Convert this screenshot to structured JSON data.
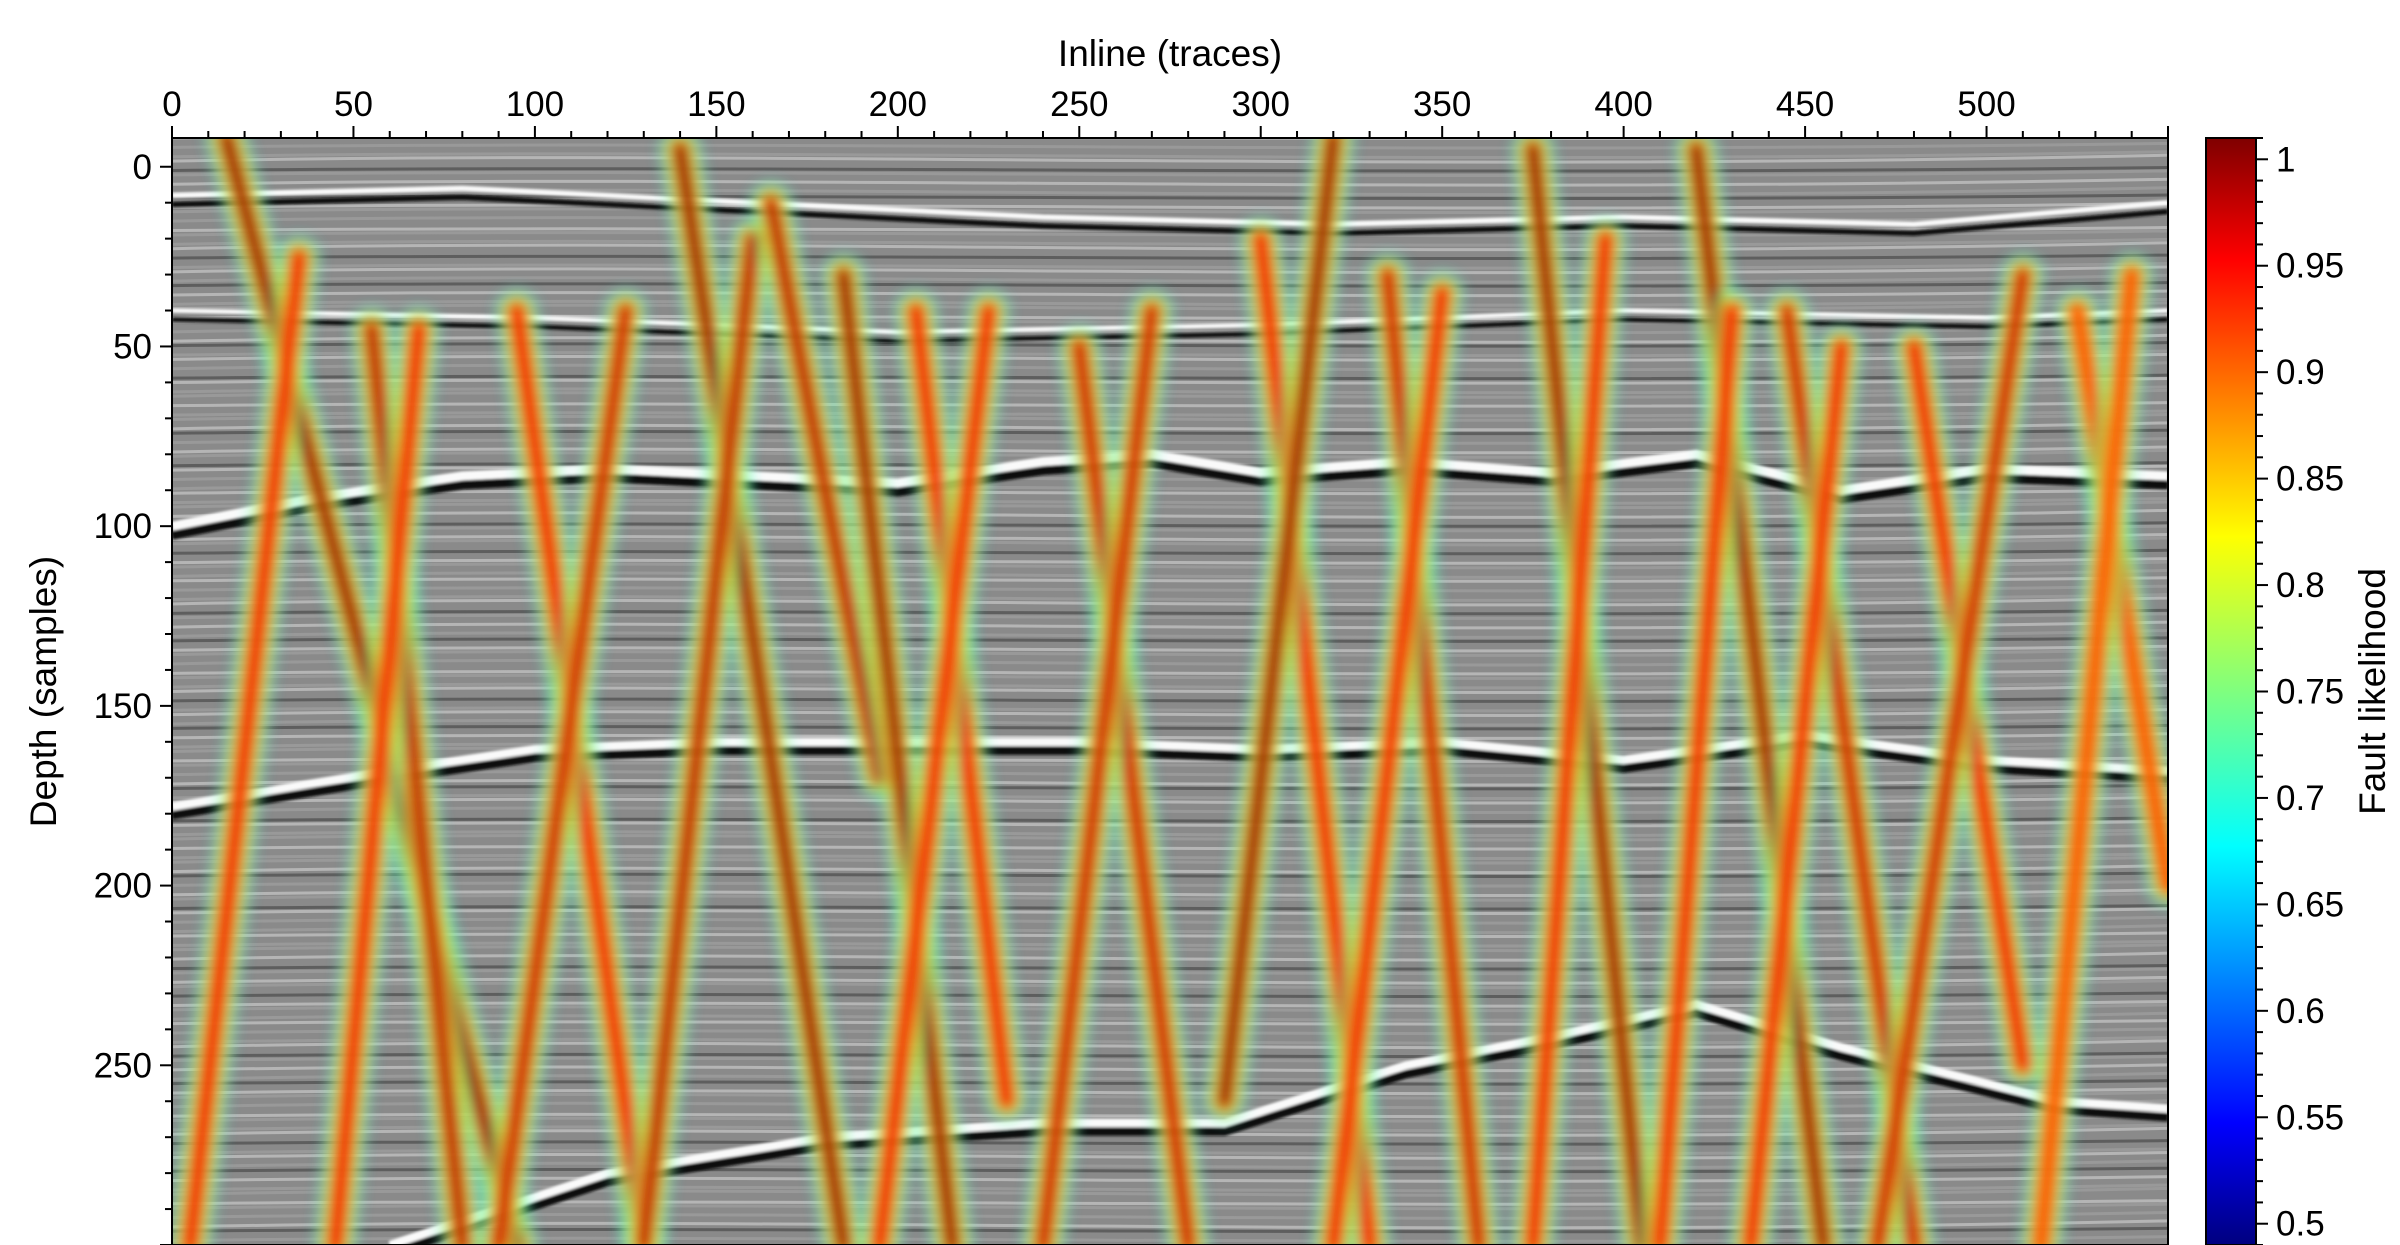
{
  "chart_data": {
    "type": "heatmap",
    "title": "",
    "xlabel": "Inline (traces)",
    "ylabel": "Depth (samples)",
    "colorbar_label": "Fault likelihood",
    "x_axis_position": "top",
    "xlim": [
      0,
      550
    ],
    "ylim": [
      300,
      -8
    ],
    "y_inverted": true,
    "x_ticks": [
      0,
      50,
      100,
      150,
      200,
      250,
      300,
      350,
      400,
      450,
      500
    ],
    "x_tick_labels": [
      "0",
      "50",
      "100",
      "150",
      "200",
      "250",
      "300",
      "350",
      "400",
      "450",
      "500"
    ],
    "y_ticks": [
      0,
      50,
      100,
      150,
      200,
      250
    ],
    "y_tick_labels": [
      "0",
      "50",
      "100",
      "150",
      "200",
      "250"
    ],
    "colorbar": {
      "range": [
        0.5,
        1.0
      ],
      "ticks": [
        0.5,
        0.55,
        0.6,
        0.65,
        0.7,
        0.75,
        0.8,
        0.85,
        0.9,
        0.95,
        1
      ],
      "tick_labels": [
        "0.5",
        "0.55",
        "0.6",
        "0.65",
        "0.7",
        "0.75",
        "0.8",
        "0.85",
        "0.9",
        "0.95",
        "1"
      ],
      "colormap": "jet"
    },
    "background": "grayscale seismic amplitude section",
    "horizons": [
      {
        "strength": 1.0,
        "points": [
          [
            0,
            100
          ],
          [
            40,
            92
          ],
          [
            80,
            86
          ],
          [
            120,
            84
          ],
          [
            160,
            86
          ],
          [
            200,
            88
          ],
          [
            240,
            82
          ],
          [
            270,
            80
          ],
          [
            300,
            85
          ],
          [
            340,
            82
          ],
          [
            380,
            85
          ],
          [
            420,
            80
          ],
          [
            460,
            90
          ],
          [
            500,
            84
          ],
          [
            550,
            86
          ]
        ]
      },
      {
        "strength": 0.9,
        "points": [
          [
            0,
            178
          ],
          [
            60,
            168
          ],
          [
            100,
            162
          ],
          [
            150,
            160
          ],
          [
            200,
            160
          ],
          [
            250,
            160
          ],
          [
            300,
            162
          ],
          [
            350,
            160
          ],
          [
            400,
            165
          ],
          [
            450,
            158
          ],
          [
            500,
            165
          ],
          [
            550,
            168
          ]
        ]
      },
      {
        "strength": 0.9,
        "points": [
          [
            60,
            300
          ],
          [
            120,
            280
          ],
          [
            180,
            270
          ],
          [
            240,
            266
          ],
          [
            290,
            266
          ],
          [
            340,
            250
          ],
          [
            380,
            242
          ],
          [
            420,
            233
          ],
          [
            460,
            245
          ],
          [
            520,
            260
          ],
          [
            550,
            262
          ]
        ]
      },
      {
        "strength": 0.6,
        "points": [
          [
            0,
            8
          ],
          [
            80,
            6
          ],
          [
            160,
            10
          ],
          [
            240,
            14
          ],
          [
            320,
            16
          ],
          [
            400,
            14
          ],
          [
            480,
            16
          ],
          [
            550,
            10
          ]
        ]
      },
      {
        "strength": 0.5,
        "points": [
          [
            0,
            40
          ],
          [
            100,
            42
          ],
          [
            200,
            46
          ],
          [
            300,
            44
          ],
          [
            400,
            40
          ],
          [
            500,
            42
          ],
          [
            550,
            40
          ]
        ]
      }
    ],
    "faults": [
      {
        "x_top": 15,
        "y_top": -8,
        "x_bottom": 95,
        "y_bottom": 300,
        "value": 1.0
      },
      {
        "x_top": 35,
        "y_top": 25,
        "x_bottom": 5,
        "y_bottom": 300,
        "value": 0.95
      },
      {
        "x_top": 55,
        "y_top": 45,
        "x_bottom": 80,
        "y_bottom": 300,
        "value": 0.98
      },
      {
        "x_top": 68,
        "y_top": 45,
        "x_bottom": 45,
        "y_bottom": 300,
        "value": 0.95
      },
      {
        "x_top": 95,
        "y_top": 40,
        "x_bottom": 130,
        "y_bottom": 300,
        "value": 0.95
      },
      {
        "x_top": 125,
        "y_top": 40,
        "x_bottom": 90,
        "y_bottom": 300,
        "value": 0.97
      },
      {
        "x_top": 140,
        "y_top": -5,
        "x_bottom": 185,
        "y_bottom": 300,
        "value": 1.0
      },
      {
        "x_top": 160,
        "y_top": 20,
        "x_bottom": 130,
        "y_bottom": 300,
        "value": 0.98
      },
      {
        "x_top": 165,
        "y_top": 10,
        "x_bottom": 195,
        "y_bottom": 170,
        "value": 0.98
      },
      {
        "x_top": 185,
        "y_top": 30,
        "x_bottom": 215,
        "y_bottom": 300,
        "value": 1.0
      },
      {
        "x_top": 205,
        "y_top": 40,
        "x_bottom": 230,
        "y_bottom": 260,
        "value": 0.95
      },
      {
        "x_top": 225,
        "y_top": 40,
        "x_bottom": 195,
        "y_bottom": 300,
        "value": 0.95
      },
      {
        "x_top": 250,
        "y_top": 50,
        "x_bottom": 280,
        "y_bottom": 300,
        "value": 0.97
      },
      {
        "x_top": 270,
        "y_top": 40,
        "x_bottom": 240,
        "y_bottom": 300,
        "value": 0.97
      },
      {
        "x_top": 300,
        "y_top": 20,
        "x_bottom": 330,
        "y_bottom": 300,
        "value": 0.95
      },
      {
        "x_top": 320,
        "y_top": -8,
        "x_bottom": 290,
        "y_bottom": 260,
        "value": 1.0
      },
      {
        "x_top": 335,
        "y_top": 30,
        "x_bottom": 360,
        "y_bottom": 300,
        "value": 0.97
      },
      {
        "x_top": 350,
        "y_top": 35,
        "x_bottom": 320,
        "y_bottom": 300,
        "value": 0.95
      },
      {
        "x_top": 375,
        "y_top": -5,
        "x_bottom": 405,
        "y_bottom": 300,
        "value": 1.0
      },
      {
        "x_top": 395,
        "y_top": 20,
        "x_bottom": 375,
        "y_bottom": 300,
        "value": 0.95
      },
      {
        "x_top": 420,
        "y_top": -5,
        "x_bottom": 455,
        "y_bottom": 300,
        "value": 1.0
      },
      {
        "x_top": 430,
        "y_top": 40,
        "x_bottom": 410,
        "y_bottom": 300,
        "value": 0.95
      },
      {
        "x_top": 445,
        "y_top": 40,
        "x_bottom": 480,
        "y_bottom": 300,
        "value": 0.97
      },
      {
        "x_top": 460,
        "y_top": 50,
        "x_bottom": 435,
        "y_bottom": 300,
        "value": 0.95
      },
      {
        "x_top": 480,
        "y_top": 50,
        "x_bottom": 510,
        "y_bottom": 250,
        "value": 0.95
      },
      {
        "x_top": 510,
        "y_top": 30,
        "x_bottom": 470,
        "y_bottom": 300,
        "value": 0.97
      },
      {
        "x_top": 525,
        "y_top": 40,
        "x_bottom": 550,
        "y_bottom": 200,
        "value": 0.9
      },
      {
        "x_top": 540,
        "y_top": 30,
        "x_bottom": 515,
        "y_bottom": 300,
        "value": 0.9
      }
    ]
  }
}
